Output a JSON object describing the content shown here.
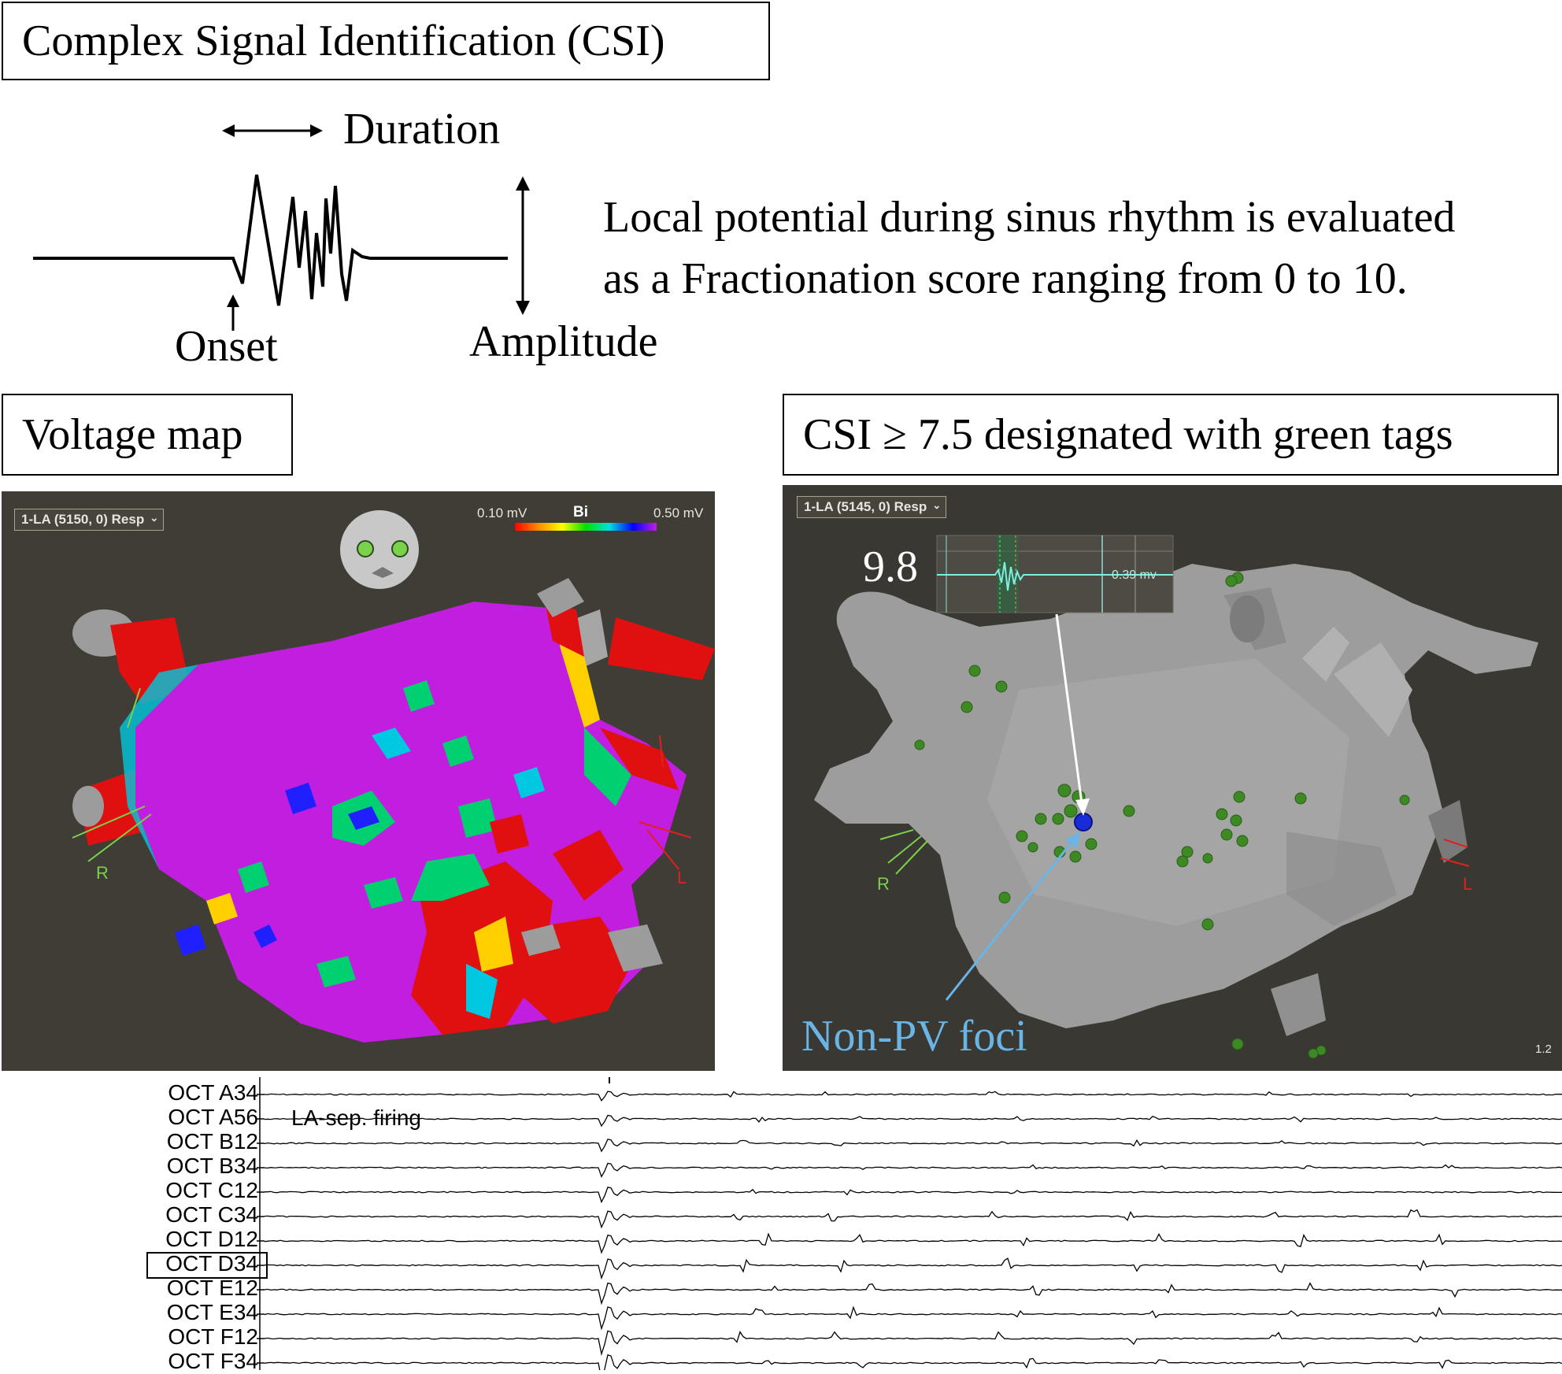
{
  "header": {
    "title": "Complex Signal Identification (CSI)"
  },
  "schematic": {
    "duration_label": "Duration",
    "onset_label": "Onset",
    "amplitude_label": "Amplitude",
    "description_line1": "Local potential during sinus rhythm is evaluated",
    "description_line2": "as a Fractionation score ranging from 0 to 10."
  },
  "voltage_panel": {
    "title": "Voltage map",
    "dropdown": "1-LA (5150, 0) Resp",
    "scale_min": "0.10 mV",
    "scale_mode": "Bi",
    "scale_max": "0.50 mV",
    "marker_right": "R",
    "marker_left": "L"
  },
  "csi_panel": {
    "title": "CSI ≥ 7.5 designated with green tags",
    "dropdown": "1-LA (5145, 0) Resp",
    "score": "9.8",
    "signal_readout": "0.39 mv",
    "foci_label": "Non-PV foci",
    "marker_right": "R",
    "marker_left": "L",
    "zoom": "1.2"
  },
  "ecg": {
    "annotation": "LA-sep. firing",
    "channels": [
      "OCT A34",
      "OCT A56",
      "OCT B12",
      "OCT B34",
      "OCT C12",
      "OCT C34",
      "OCT D12",
      "OCT D34",
      "OCT E12",
      "OCT E34",
      "OCT F12",
      "OCT F34"
    ],
    "highlighted_channel": "OCT D34"
  },
  "colors": {
    "scar_purple": "#c21ee0",
    "low_voltage_red": "#e01010",
    "tag_green": "#3d8a25",
    "foci_blue": "#6ab4e6",
    "surface_gray": "#9a9a9a"
  }
}
